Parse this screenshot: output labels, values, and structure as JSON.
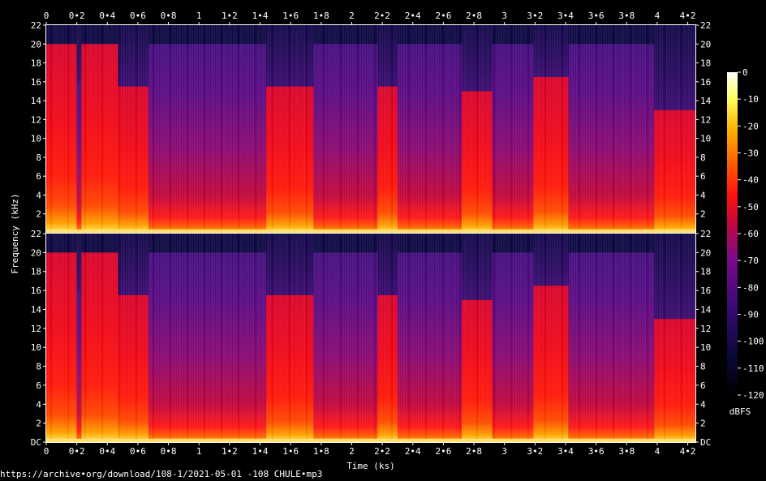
{
  "chart_data": {
    "type": "heatmap",
    "title": "",
    "xlabel": "Time (ks)",
    "ylabel": "Frequency (kHz)",
    "colorbar_label": "dBFS",
    "xlim": [
      0,
      4.25
    ],
    "x_ticks": [
      0,
      0.2,
      0.4,
      0.6,
      0.8,
      1,
      1.2,
      1.4,
      1.6,
      1.8,
      2,
      2.2,
      2.4,
      2.6,
      2.8,
      3,
      3.2,
      3.4,
      3.6,
      3.8,
      4,
      4.2
    ],
    "x_tick_labels": [
      "0",
      "0•2",
      "0•4",
      "0•6",
      "0•8",
      "1",
      "1•2",
      "1•4",
      "1•6",
      "1•8",
      "2",
      "2•2",
      "2•4",
      "2•6",
      "2•8",
      "3",
      "3•2",
      "3•4",
      "3•6",
      "3•8",
      "4",
      "4•2"
    ],
    "ylim": [
      0,
      22
    ],
    "y_ticks": [
      0,
      2,
      4,
      6,
      8,
      10,
      12,
      14,
      16,
      18,
      20,
      22
    ],
    "y_tick_labels": [
      "DC",
      "2",
      "4",
      "6",
      "8",
      "10",
      "12",
      "14",
      "16",
      "18",
      "20",
      "22"
    ],
    "colorbar_range": [
      -120,
      0
    ],
    "colorbar_ticks": [
      0,
      -10,
      -20,
      -30,
      -40,
      -50,
      -60,
      -70,
      -80,
      -90,
      -100,
      -110,
      -120
    ],
    "colorbar_tick_labels": [
      "0",
      "-10",
      "-20",
      "-30",
      "-40",
      "-50",
      "-60",
      "-70",
      "-80",
      "-90",
      "-100",
      "-110",
      "-120"
    ],
    "channels": [
      "left",
      "right"
    ],
    "segments": [
      {
        "start": 0.0,
        "end": 0.2,
        "cutoff_khz": 20.0,
        "level": "loud"
      },
      {
        "start": 0.2,
        "end": 0.23,
        "cutoff_khz": 16.0,
        "level": "quiet"
      },
      {
        "start": 0.23,
        "end": 0.47,
        "cutoff_khz": 20.0,
        "level": "loud"
      },
      {
        "start": 0.47,
        "end": 0.67,
        "cutoff_khz": 15.5,
        "level": "loud"
      },
      {
        "start": 0.67,
        "end": 1.44,
        "cutoff_khz": 20.0,
        "level": "quiet"
      },
      {
        "start": 1.44,
        "end": 1.75,
        "cutoff_khz": 15.5,
        "level": "loud"
      },
      {
        "start": 1.75,
        "end": 2.17,
        "cutoff_khz": 20.0,
        "level": "quiet"
      },
      {
        "start": 2.17,
        "end": 2.3,
        "cutoff_khz": 15.5,
        "level": "loud"
      },
      {
        "start": 2.3,
        "end": 2.72,
        "cutoff_khz": 20.0,
        "level": "quiet"
      },
      {
        "start": 2.72,
        "end": 2.92,
        "cutoff_khz": 15.0,
        "level": "loud"
      },
      {
        "start": 2.92,
        "end": 3.19,
        "cutoff_khz": 20.0,
        "level": "quiet"
      },
      {
        "start": 3.19,
        "end": 3.42,
        "cutoff_khz": 16.5,
        "level": "loud"
      },
      {
        "start": 3.42,
        "end": 3.98,
        "cutoff_khz": 20.0,
        "level": "quiet"
      },
      {
        "start": 3.98,
        "end": 4.25,
        "cutoff_khz": 13.0,
        "level": "loud"
      }
    ]
  },
  "footer": {
    "source": "https://archive•org/download/108-1/2021-05-01 -108 CHULE•mp3"
  }
}
